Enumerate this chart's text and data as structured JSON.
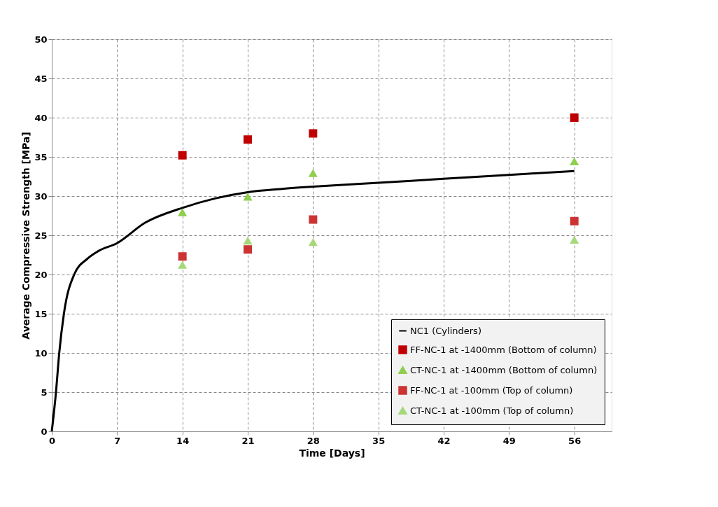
{
  "chart_data": {
    "type": "scatter",
    "xlabel": "Time [Days]",
    "ylabel": "Average Compressive Strength [MPa]",
    "xlim": [
      0,
      60
    ],
    "xticks": [
      0,
      7,
      14,
      21,
      28,
      35,
      42,
      49,
      56
    ],
    "ylim": [
      0,
      50
    ],
    "yticks": [
      0,
      5,
      10,
      15,
      20,
      25,
      30,
      35,
      40,
      45,
      50
    ],
    "grid": true,
    "legend": "bottom right",
    "series": [
      {
        "name": "NC1 (Cylinders)",
        "type": "line",
        "color": "#000000",
        "marker": "none",
        "line_style": "solid",
        "x": [
          0,
          0.45,
          0.8,
          1.3,
          2.4,
          3.8,
          5,
          7,
          10,
          14,
          17.5,
          21,
          24.5,
          28,
          35,
          42,
          49,
          56
        ],
        "values": [
          0,
          5,
          10,
          15,
          20,
          22,
          23,
          24,
          26.6,
          28.5,
          29.7,
          30.5,
          30.9,
          31.2,
          31.7,
          32.2,
          32.7,
          33.2
        ]
      },
      {
        "name": "FF-NC-1 at -1400mm (Bottom of column)",
        "color": "#c00000",
        "marker": "square",
        "x": [
          14,
          21,
          28,
          56
        ],
        "values": [
          35.2,
          37.2,
          38.0,
          40.0
        ]
      },
      {
        "name": "CT-NC-1 at -1400mm (Bottom of column)",
        "color": "#8fce4f",
        "marker": "triangle",
        "x": [
          14,
          21,
          28,
          56
        ],
        "values": [
          27.9,
          29.9,
          32.9,
          34.4
        ]
      },
      {
        "name": "FF-NC-1 at -100mm (Top of column)",
        "color": "#cc3333",
        "marker": "square",
        "x": [
          14,
          21,
          28,
          56
        ],
        "values": [
          22.3,
          23.2,
          27.0,
          26.8
        ]
      },
      {
        "name": "CT-NC-1 at -100mm (Top of column)",
        "color": "#a6d87a",
        "marker": "triangle",
        "x": [
          14,
          21,
          28,
          56
        ],
        "values": [
          21.2,
          24.3,
          24.1,
          24.4
        ]
      }
    ]
  }
}
